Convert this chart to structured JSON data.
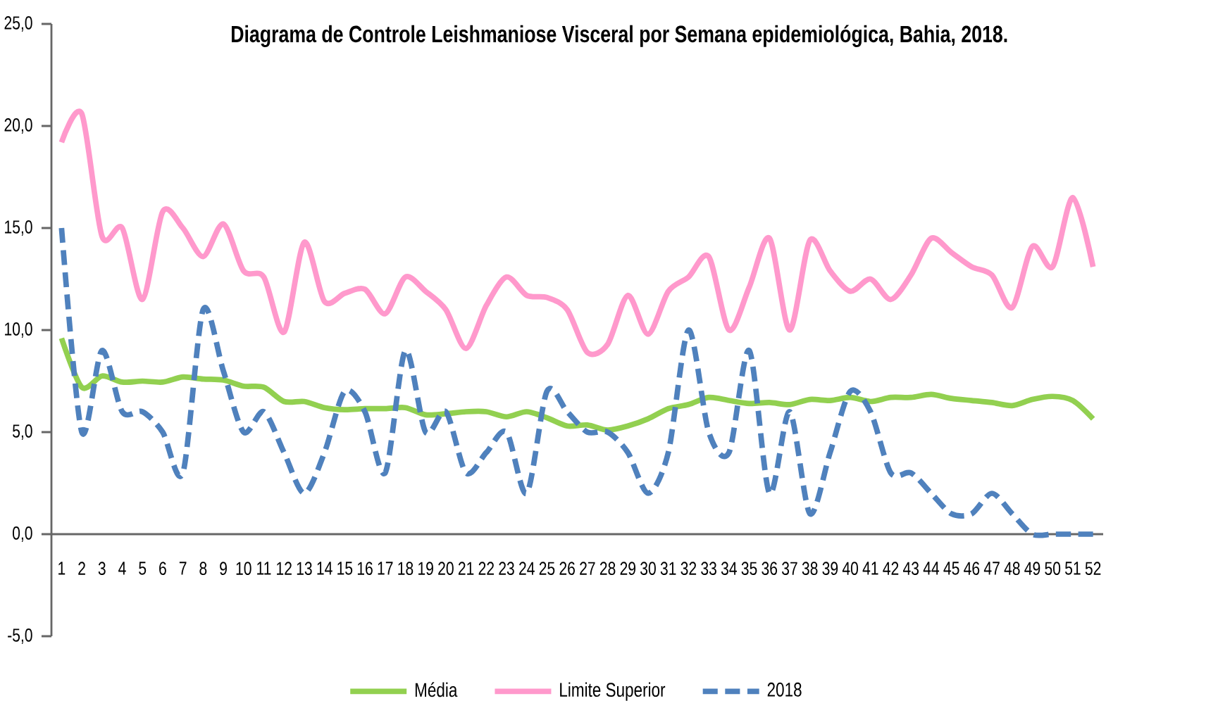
{
  "chart_data": {
    "type": "line",
    "title": "Diagrama  de Controle Leishmaniose Visceral por Semana epidemiológica, Bahia,  2018.",
    "categories": [
      "1",
      "2",
      "3",
      "4",
      "5",
      "6",
      "7",
      "8",
      "9",
      "10",
      "11",
      "12",
      "13",
      "14",
      "15",
      "16",
      "17",
      "18",
      "19",
      "20",
      "21",
      "22",
      "23",
      "24",
      "25",
      "26",
      "27",
      "28",
      "29",
      "30",
      "31",
      "32",
      "33",
      "34",
      "35",
      "36",
      "37",
      "38",
      "39",
      "40",
      "41",
      "42",
      "43",
      "44",
      "45",
      "46",
      "47",
      "48",
      "49",
      "50",
      "51",
      "52"
    ],
    "series": [
      {
        "name": "Média",
        "color": "#92d050",
        "line_style": "solid",
        "values": [
          9.6,
          7.2,
          7.75,
          7.45,
          7.5,
          7.45,
          7.7,
          7.6,
          7.55,
          7.25,
          7.2,
          6.5,
          6.5,
          6.2,
          6.1,
          6.15,
          6.15,
          6.2,
          5.85,
          5.9,
          6.0,
          6.0,
          5.75,
          6.0,
          5.7,
          5.3,
          5.35,
          5.1,
          5.3,
          5.65,
          6.15,
          6.35,
          6.7,
          6.55,
          6.4,
          6.45,
          6.35,
          6.6,
          6.55,
          6.7,
          6.5,
          6.7,
          6.7,
          6.85,
          6.65,
          6.55,
          6.45,
          6.3,
          6.6,
          6.75,
          6.55,
          5.65
        ]
      },
      {
        "name": "Limite Superior",
        "color": "#ff99cc",
        "line_style": "solid",
        "values": [
          19.2,
          20.6,
          14.6,
          15.0,
          11.5,
          15.8,
          15.0,
          13.6,
          15.2,
          12.9,
          12.6,
          9.9,
          14.3,
          11.4,
          11.8,
          12.0,
          10.8,
          12.6,
          11.9,
          11.0,
          9.1,
          11.2,
          12.6,
          11.7,
          11.6,
          11.0,
          8.9,
          9.3,
          11.7,
          9.8,
          11.9,
          12.6,
          13.6,
          10.0,
          12.1,
          14.5,
          10.0,
          14.4,
          12.9,
          11.9,
          12.5,
          11.5,
          12.7,
          14.5,
          13.8,
          13.1,
          12.7,
          11.1,
          14.1,
          13.1,
          16.5,
          13.1
        ]
      },
      {
        "name": "2018",
        "color": "#4f81bd",
        "line_style": "dashed",
        "values": [
          15,
          5,
          9,
          6,
          6,
          5,
          3,
          11,
          8,
          5,
          6,
          4,
          2,
          4,
          7,
          6,
          3,
          9,
          5,
          6,
          3,
          4,
          5,
          2,
          7,
          6,
          5,
          5,
          4,
          2,
          4,
          10,
          5,
          4,
          9,
          2,
          6,
          1,
          4,
          7,
          6,
          3,
          3,
          2,
          1,
          1,
          2,
          1,
          0,
          0,
          0,
          0
        ]
      }
    ],
    "ylim": [
      -5,
      25
    ],
    "yticks": [
      {
        "value": -5,
        "label": "-5,0"
      },
      {
        "value": 0,
        "label": "0,0"
      },
      {
        "value": 5,
        "label": "5,0"
      },
      {
        "value": 10,
        "label": "10,0"
      },
      {
        "value": 15,
        "label": "15,0"
      },
      {
        "value": 20,
        "label": "20,0"
      },
      {
        "value": 25,
        "label": "25,0"
      }
    ],
    "grid": false,
    "legend": "bottom",
    "marker": "none"
  }
}
